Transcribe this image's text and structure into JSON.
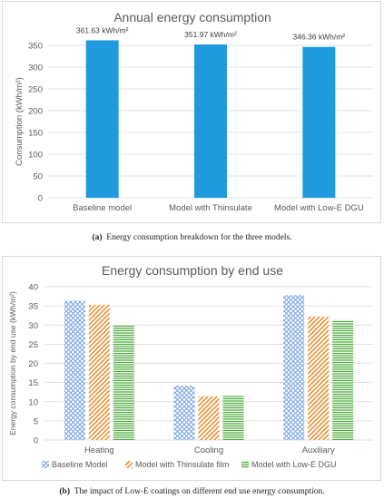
{
  "chart_data": [
    {
      "type": "bar",
      "title": "Annual energy consumption",
      "ylabel": "Consumption (kWh/m²)",
      "xlabel": "",
      "categories": [
        "Baseline model",
        "Model with Thinsulate",
        "Model with Low-E DGU"
      ],
      "values": [
        361.63,
        351.97,
        346.36
      ],
      "data_labels": [
        "361.63 kWh/m²",
        "351.97 kWh/m²",
        "346.36 kWh/m²"
      ],
      "ylim": [
        0,
        350
      ],
      "yticks": [
        0,
        50,
        100,
        150,
        200,
        250,
        300,
        350
      ],
      "grid": true,
      "colors": [
        "#1f9bdd"
      ]
    },
    {
      "type": "bar",
      "title": "Energy consumption by end use",
      "ylabel": "Energy consumption by end use (kWh/m²)",
      "xlabel": "",
      "categories": [
        "Heating",
        "Cooling",
        "Auxiliary"
      ],
      "series": [
        {
          "name": "Baseline Model",
          "values": [
            36.3,
            14.2,
            37.8
          ],
          "color": "#7fa8e0",
          "pattern": "crosshatch"
        },
        {
          "name": "Model with Thinsulate film",
          "values": [
            35.3,
            11.4,
            32.2
          ],
          "color": "#e8923a",
          "pattern": "diagonal"
        },
        {
          "name": "Model with Low-E DGU",
          "values": [
            30.0,
            11.5,
            31.3
          ],
          "color": "#4caa3c",
          "pattern": "horizontal"
        }
      ],
      "ylim": [
        0,
        40
      ],
      "yticks": [
        0,
        5,
        10,
        15,
        20,
        25,
        30,
        35,
        40
      ],
      "grid": true,
      "legend": "bottom"
    }
  ],
  "captions": {
    "a_label": "(a)",
    "a_text": "Energy consumption breakdown for the three models.",
    "b_label": "(b)",
    "b_text": "The impact of Low-E coatings on different end use energy consumption."
  }
}
